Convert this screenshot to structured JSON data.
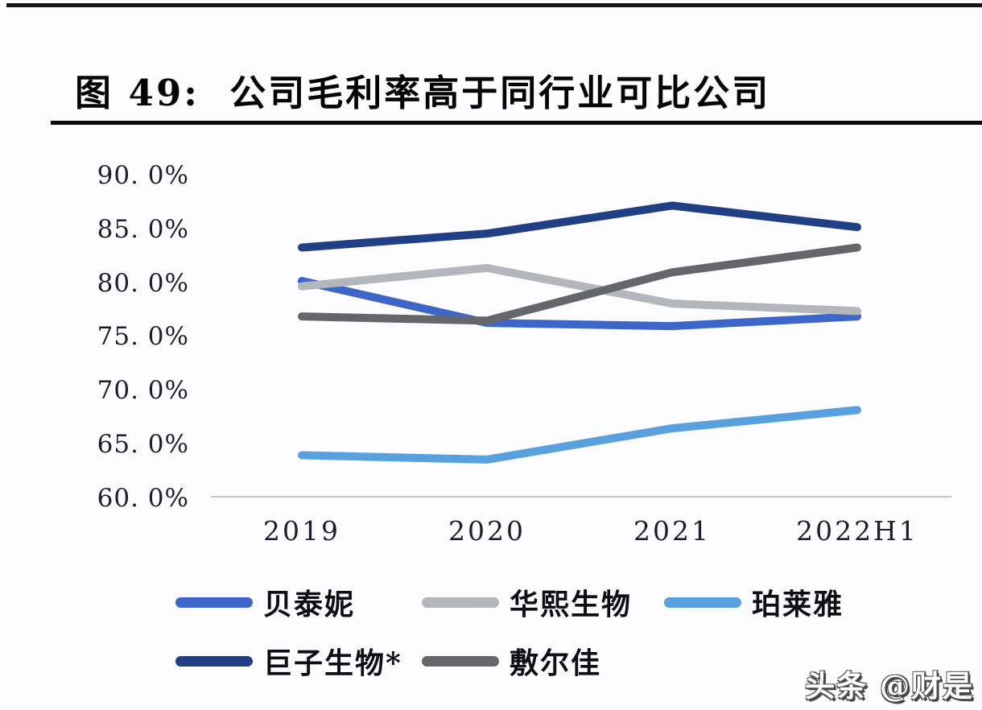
{
  "page": {
    "title": "图 49:  公司毛利率高于同行业可比公司",
    "watermark": "头条 @财是"
  },
  "chart_data": {
    "type": "line",
    "title": "公司毛利率高于同行业可比公司",
    "categories": [
      "2019",
      "2020",
      "2021",
      "2022H1"
    ],
    "series": [
      {
        "name": "贝泰妮",
        "color": "#3d66c9",
        "values": [
          80.2,
          76.3,
          76.0,
          76.9
        ]
      },
      {
        "name": "华熙生物",
        "color": "#b3b6ba",
        "values": [
          79.7,
          81.4,
          78.1,
          77.4
        ]
      },
      {
        "name": "珀莱雅",
        "color": "#58a0de",
        "values": [
          64.0,
          63.6,
          66.5,
          68.2
        ]
      },
      {
        "name": "巨子生物*",
        "color": "#203f85",
        "values": [
          83.3,
          84.6,
          87.2,
          85.2
        ]
      },
      {
        "name": "敷尔佳",
        "color": "#646669",
        "values": [
          76.9,
          76.5,
          81.0,
          83.3
        ]
      }
    ],
    "xlabel": "",
    "ylabel": "",
    "ylim": [
      60,
      90
    ],
    "y_ticks": {
      "values": [
        90,
        85,
        80,
        75,
        70,
        65,
        60
      ],
      "labels": [
        "90. 0%",
        "85. 0%",
        "80. 0%",
        "75. 0%",
        "70. 0%",
        "65. 0%",
        "60. 0%"
      ]
    },
    "grid": false,
    "legend_position": "bottom",
    "unit": "percent",
    "layout": {
      "draw_order": [
        0,
        2,
        1,
        4,
        3
      ]
    }
  }
}
